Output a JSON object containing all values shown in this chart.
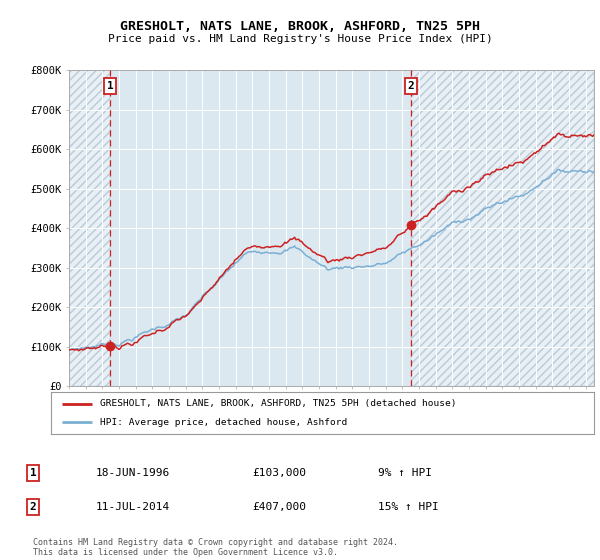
{
  "title": "GRESHOLT, NATS LANE, BROOK, ASHFORD, TN25 5PH",
  "subtitle": "Price paid vs. HM Land Registry's House Price Index (HPI)",
  "xlim_start": 1994.0,
  "xlim_end": 2025.5,
  "ylim": [
    0,
    800000
  ],
  "yticks": [
    0,
    100000,
    200000,
    300000,
    400000,
    500000,
    600000,
    700000,
    800000
  ],
  "ytick_labels": [
    "£0",
    "£100K",
    "£200K",
    "£300K",
    "£400K",
    "£500K",
    "£600K",
    "£700K",
    "£800K"
  ],
  "sale1_x": 1996.46,
  "sale1_y": 103000,
  "sale1_label": "1",
  "sale1_date": "18-JUN-1996",
  "sale1_price": "£103,000",
  "sale1_hpi": "9% ↑ HPI",
  "sale2_x": 2014.53,
  "sale2_y": 407000,
  "sale2_label": "2",
  "sale2_date": "11-JUL-2014",
  "sale2_price": "£407,000",
  "sale2_hpi": "15% ↑ HPI",
  "hpi_line_color": "#7bafd4",
  "sale_line_color": "#cc2222",
  "vline_color": "#cc2222",
  "marker_color": "#cc2222",
  "legend_label_sale": "GRESHOLT, NATS LANE, BROOK, ASHFORD, TN25 5PH (detached house)",
  "legend_label_hpi": "HPI: Average price, detached house, Ashford",
  "footer": "Contains HM Land Registry data © Crown copyright and database right 2024.\nThis data is licensed under the Open Government Licence v3.0.",
  "bg_color": "#ffffff",
  "plot_bg_color": "#dce8f0",
  "grid_color": "#ffffff",
  "hatch_color": "#b8cad8"
}
